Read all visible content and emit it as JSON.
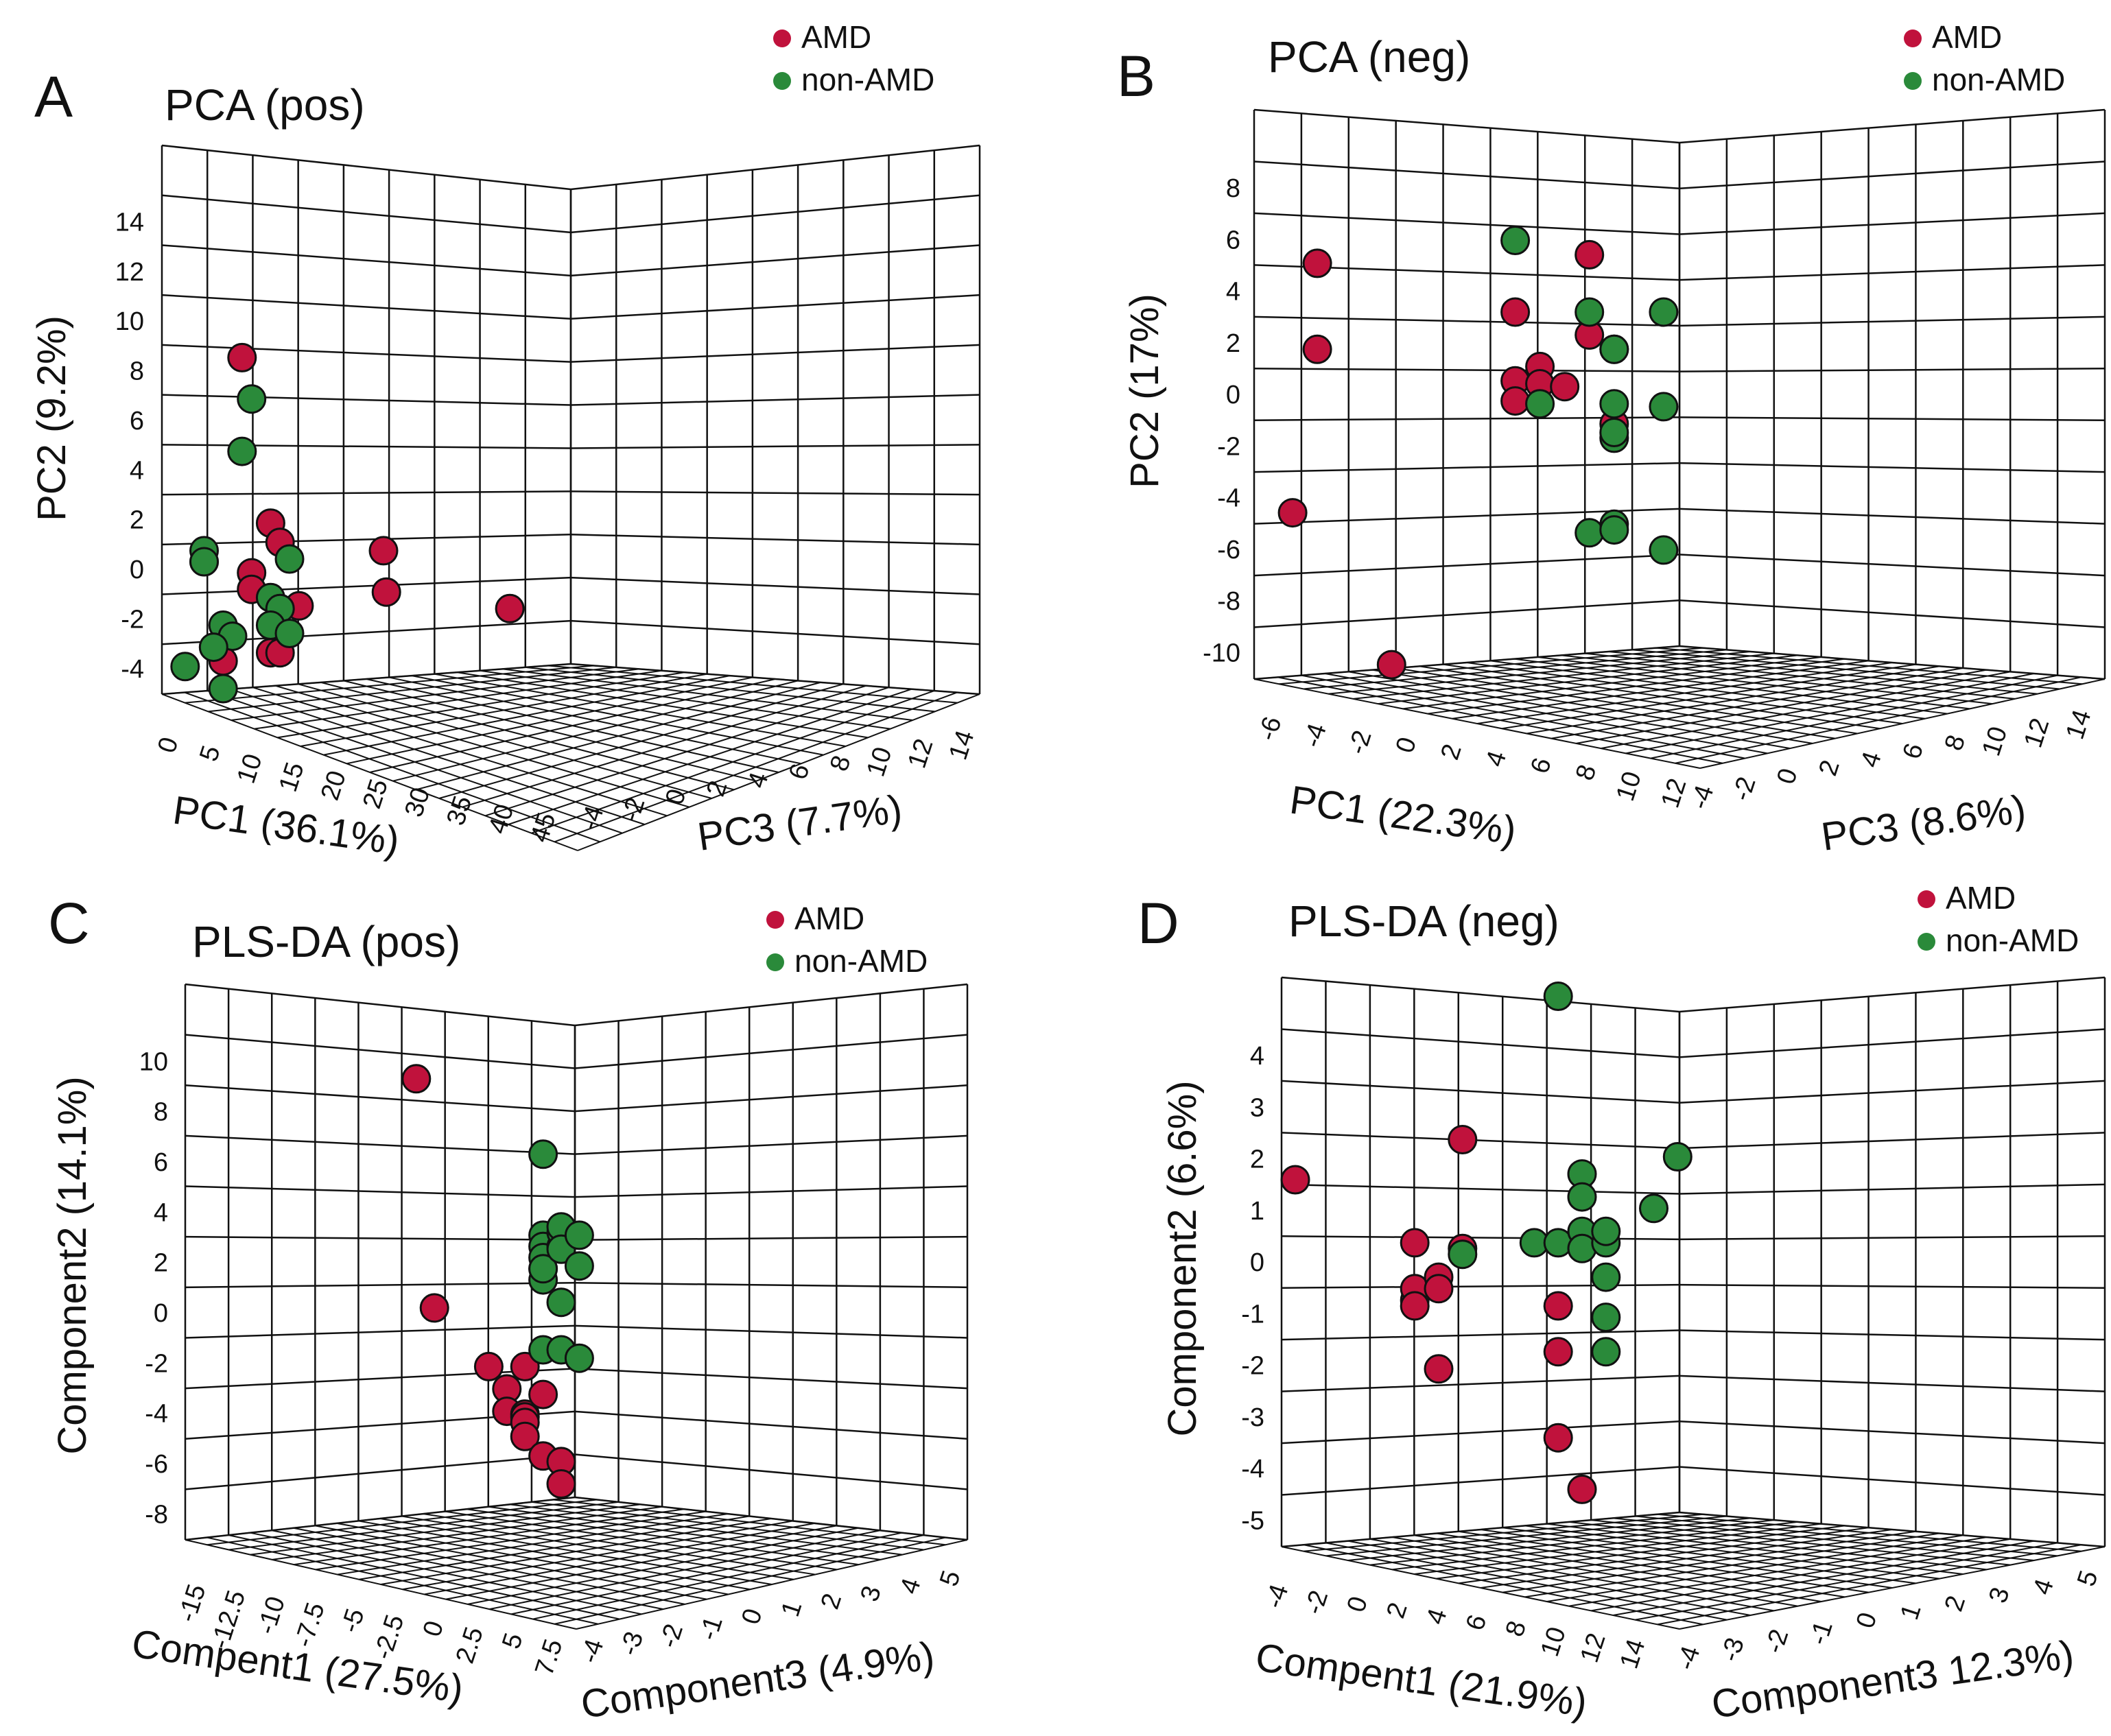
{
  "colors": {
    "amd": "#c0123c",
    "non_amd": "#2a8a3a",
    "grid": "#111111"
  },
  "legend": {
    "amd": "AMD",
    "non_amd": "non-AMD"
  },
  "chart_data": [
    {
      "type": "scatter",
      "panel": "A",
      "title": "PCA (pos)",
      "xlabel": "PC1 (36.1%)",
      "ylabel": "PC2 (9.2%)",
      "zlabel": "PC3 (7.7%)",
      "xticks": [
        "0",
        "5",
        "10",
        "15",
        "20",
        "25",
        "30",
        "35",
        "40",
        "45"
      ],
      "yticks": [
        "-4",
        "-2",
        "0",
        "2",
        "4",
        "6",
        "8",
        "10",
        "12",
        "14"
      ],
      "zticks": [
        "-4",
        "-2",
        "0",
        "2",
        "4",
        "6",
        "8",
        "10",
        "12",
        "14"
      ],
      "series": [
        {
          "name": "AMD",
          "points": [
            [
              7,
              8.2,
              0
            ],
            [
              10,
              2.2,
              0
            ],
            [
              11,
              1.5,
              0
            ],
            [
              3,
              0.8,
              0
            ],
            [
              8,
              0.4,
              0
            ],
            [
              8,
              -0.2,
              0
            ],
            [
              13,
              -0.8,
              0
            ],
            [
              5,
              -2.8,
              0
            ],
            [
              10,
              -2.5,
              0
            ],
            [
              11,
              -2.5,
              0
            ],
            [
              17,
              -0.3,
              4
            ],
            [
              18,
              1.2,
              3
            ],
            [
              30,
              -0.9,
              4
            ]
          ]
        },
        {
          "name": "non-AMD",
          "points": [
            [
              8,
              6.7,
              0
            ],
            [
              7,
              4.8,
              0
            ],
            [
              3,
              1.2,
              0
            ],
            [
              3,
              0.8,
              0
            ],
            [
              10,
              -0.5,
              0
            ],
            [
              11,
              -0.9,
              0
            ],
            [
              5,
              -1.5,
              0
            ],
            [
              6,
              -1.9,
              0
            ],
            [
              10,
              -1.5,
              0
            ],
            [
              12,
              -1.8,
              0
            ],
            [
              4,
              -2.3,
              0
            ],
            [
              1,
              -3.0,
              0
            ],
            [
              5,
              -3.8,
              0
            ],
            [
              12,
              0.9,
              0
            ]
          ]
        }
      ]
    },
    {
      "type": "scatter",
      "panel": "B",
      "title": "PCA (neg)",
      "xlabel": "PC1 (22.3%)",
      "ylabel": "PC2 (17%)",
      "zlabel": "PC3 (8.6%)",
      "xticks": [
        "-6",
        "-4",
        "-2",
        "0",
        "2",
        "4",
        "6",
        "8",
        "10",
        "12"
      ],
      "yticks": [
        "-10",
        "-8",
        "-6",
        "-4",
        "-2",
        "0",
        "2",
        "4",
        "6",
        "8"
      ],
      "zticks": [
        "-4",
        "-2",
        "0",
        "2",
        "4",
        "6",
        "8",
        "10",
        "12",
        "14"
      ],
      "series": [
        {
          "name": "AMD",
          "points": [
            [
              -4,
              4.5,
              0
            ],
            [
              -4,
              1.5,
              0
            ],
            [
              -5,
              -4.2,
              0
            ],
            [
              7,
              4.8,
              0
            ],
            [
              4,
              2.8,
              0
            ],
            [
              7,
              2.0,
              0
            ],
            [
              5,
              0.9,
              0
            ],
            [
              4,
              0.4,
              0
            ],
            [
              5,
              0.3,
              0
            ],
            [
              6,
              0.2,
              0
            ],
            [
              4,
              -0.3,
              0
            ],
            [
              8,
              -1.1,
              0
            ],
            [
              -1,
              -9.5,
              0
            ]
          ]
        },
        {
          "name": "non-AMD",
          "points": [
            [
              4,
              5.3,
              0
            ],
            [
              7,
              2.8,
              0
            ],
            [
              8,
              1.5,
              0
            ],
            [
              8,
              1.5,
              0
            ],
            [
              10,
              2.8,
              0
            ],
            [
              8,
              -0.4,
              0
            ],
            [
              10,
              -0.5,
              0
            ],
            [
              8,
              -1.6,
              0
            ],
            [
              8,
              -1.4,
              0
            ],
            [
              5,
              -0.4,
              0
            ],
            [
              7,
              -4.9,
              0
            ],
            [
              8,
              -4.6,
              0
            ],
            [
              8,
              -4.8,
              0
            ],
            [
              10,
              -5.5,
              0
            ]
          ]
        }
      ]
    },
    {
      "type": "scatter",
      "panel": "C",
      "title": "PLS-DA (pos)",
      "xlabel": "Compent1  (27.5%)",
      "ylabel": "Component2  (14.1%)",
      "zlabel": "Component3  (4.9%)",
      "xticks": [
        "-15",
        "-12.5",
        "-10",
        "-7.5",
        "-5",
        "-2.5",
        "0",
        "2.5",
        "5",
        "7.5"
      ],
      "yticks": [
        "-8",
        "-6",
        "-4",
        "-2",
        "0",
        "2",
        "4",
        "6",
        "8",
        "10"
      ],
      "zticks": [
        "-4",
        "-3",
        "-2",
        "-1",
        "0",
        "1",
        "2",
        "3",
        "4",
        "5"
      ],
      "series": [
        {
          "name": "AMD",
          "points": [
            [
              -3,
              8.5,
              0
            ],
            [
              -2,
              0.3,
              0
            ],
            [
              1,
              -1.8,
              0
            ],
            [
              2,
              -2.6,
              0
            ],
            [
              2,
              -3.4,
              0
            ],
            [
              3,
              -3.5,
              0
            ],
            [
              3,
              -3.6,
              0
            ],
            [
              3,
              -3.8,
              0
            ],
            [
              3,
              -4.3,
              0
            ],
            [
              4,
              -5.0,
              0
            ],
            [
              3,
              -1.8,
              0
            ],
            [
              4,
              -2.8,
              0
            ],
            [
              5,
              -5.2,
              0
            ],
            [
              5,
              -6.0,
              0
            ]
          ]
        },
        {
          "name": "non-AMD",
          "points": [
            [
              4,
              5.8,
              0
            ],
            [
              4,
              2.9,
              0
            ],
            [
              4,
              2.5,
              0
            ],
            [
              4,
              1.7,
              0
            ],
            [
              4,
              2.1,
              0
            ],
            [
              4,
              1.3,
              0
            ],
            [
              5,
              2.5,
              0
            ],
            [
              4,
              1.7,
              0
            ],
            [
              4,
              -1.2,
              0
            ],
            [
              5,
              3.0,
              0
            ],
            [
              5,
              3.2,
              0
            ],
            [
              5,
              2.4,
              0
            ],
            [
              6,
              2.9,
              0
            ],
            [
              5,
              0.5,
              0
            ],
            [
              5,
              -1.2,
              0
            ],
            [
              6,
              1.8,
              0
            ],
            [
              6,
              -1.5,
              0
            ]
          ]
        }
      ]
    },
    {
      "type": "scatter",
      "panel": "D",
      "title": "PLS-DA (neg)",
      "xlabel": "Compent1  (21.9%)",
      "ylabel": "Component2  (6.6%)",
      "zlabel": "Component3  12.3%)",
      "xticks": [
        "-4",
        "-2",
        "0",
        "2",
        "4",
        "6",
        "8",
        "10",
        "12",
        "14"
      ],
      "yticks": [
        "-5",
        "-4",
        "-3",
        "-2",
        "-1",
        "0",
        "1",
        "2",
        "3",
        "4"
      ],
      "zticks": [
        "-4",
        "-3",
        "-2",
        "-1",
        "0",
        "1",
        "2",
        "3",
        "4",
        "5"
      ],
      "series": [
        {
          "name": "AMD",
          "points": [
            [
              -4,
              1.4,
              0
            ],
            [
              3,
              2.1,
              0
            ],
            [
              1,
              0.3,
              0
            ],
            [
              3,
              0.2,
              0
            ],
            [
              1,
              -0.7,
              0
            ],
            [
              1,
              -0.5,
              0
            ],
            [
              2,
              -0.3,
              0
            ],
            [
              2,
              -0.5,
              0
            ],
            [
              1,
              -0.8,
              0
            ],
            [
              2,
              -1.9,
              0
            ],
            [
              7,
              -0.8,
              0
            ],
            [
              7,
              -1.6,
              0
            ],
            [
              7,
              -3.1,
              0
            ],
            [
              8,
              -4.0,
              0
            ]
          ]
        },
        {
          "name": "non-AMD",
          "points": [
            [
              7,
              4.6,
              0
            ],
            [
              3,
              0.1,
              0
            ],
            [
              6,
              0.3,
              0
            ],
            [
              7,
              0.3,
              0
            ],
            [
              8,
              1.5,
              0
            ],
            [
              8,
              1.1,
              0
            ],
            [
              8,
              0.5,
              0
            ],
            [
              8,
              0.2,
              0
            ],
            [
              9,
              0.3,
              0
            ],
            [
              9,
              0.5,
              0
            ],
            [
              9,
              -0.3,
              0
            ],
            [
              9,
              -1.0,
              0
            ],
            [
              9,
              -1.6,
              0
            ],
            [
              12,
              1.8,
              0
            ],
            [
              11,
              0.9,
              0
            ]
          ]
        }
      ]
    }
  ]
}
